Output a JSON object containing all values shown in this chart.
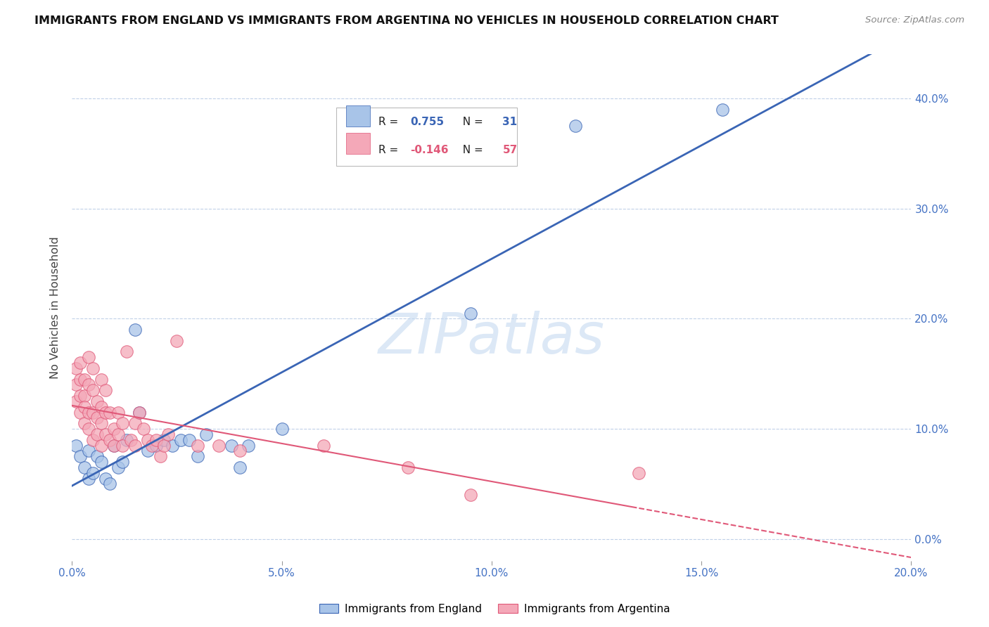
{
  "title": "IMMIGRANTS FROM ENGLAND VS IMMIGRANTS FROM ARGENTINA NO VEHICLES IN HOUSEHOLD CORRELATION CHART",
  "source": "Source: ZipAtlas.com",
  "ylabel": "No Vehicles in Household",
  "xlabel_england": "Immigrants from England",
  "xlabel_argentina": "Immigrants from Argentina",
  "r_england": 0.755,
  "n_england": 31,
  "r_argentina": -0.146,
  "n_argentina": 57,
  "xlim": [
    0.0,
    0.2
  ],
  "ylim": [
    -0.02,
    0.44
  ],
  "yticks": [
    0.0,
    0.1,
    0.2,
    0.3,
    0.4
  ],
  "xticks": [
    0.0,
    0.05,
    0.1,
    0.15,
    0.2
  ],
  "color_england": "#a8c4e8",
  "color_argentina": "#f4a8b8",
  "color_england_line": "#3a65b5",
  "color_argentina_line": "#e05878",
  "watermark": "ZIPatlas",
  "england_scatter": [
    [
      0.001,
      0.085
    ],
    [
      0.002,
      0.075
    ],
    [
      0.003,
      0.065
    ],
    [
      0.004,
      0.08
    ],
    [
      0.004,
      0.055
    ],
    [
      0.005,
      0.06
    ],
    [
      0.006,
      0.075
    ],
    [
      0.007,
      0.07
    ],
    [
      0.008,
      0.055
    ],
    [
      0.009,
      0.05
    ],
    [
      0.01,
      0.085
    ],
    [
      0.011,
      0.065
    ],
    [
      0.012,
      0.07
    ],
    [
      0.013,
      0.09
    ],
    [
      0.015,
      0.19
    ],
    [
      0.016,
      0.115
    ],
    [
      0.018,
      0.08
    ],
    [
      0.02,
      0.085
    ],
    [
      0.022,
      0.09
    ],
    [
      0.024,
      0.085
    ],
    [
      0.026,
      0.09
    ],
    [
      0.028,
      0.09
    ],
    [
      0.03,
      0.075
    ],
    [
      0.032,
      0.095
    ],
    [
      0.038,
      0.085
    ],
    [
      0.04,
      0.065
    ],
    [
      0.042,
      0.085
    ],
    [
      0.05,
      0.1
    ],
    [
      0.095,
      0.205
    ],
    [
      0.12,
      0.375
    ],
    [
      0.155,
      0.39
    ]
  ],
  "argentina_scatter": [
    [
      0.001,
      0.155
    ],
    [
      0.001,
      0.14
    ],
    [
      0.001,
      0.125
    ],
    [
      0.002,
      0.16
    ],
    [
      0.002,
      0.145
    ],
    [
      0.002,
      0.13
    ],
    [
      0.002,
      0.115
    ],
    [
      0.003,
      0.145
    ],
    [
      0.003,
      0.13
    ],
    [
      0.003,
      0.12
    ],
    [
      0.003,
      0.105
    ],
    [
      0.004,
      0.165
    ],
    [
      0.004,
      0.14
    ],
    [
      0.004,
      0.115
    ],
    [
      0.004,
      0.1
    ],
    [
      0.005,
      0.155
    ],
    [
      0.005,
      0.135
    ],
    [
      0.005,
      0.115
    ],
    [
      0.005,
      0.09
    ],
    [
      0.006,
      0.125
    ],
    [
      0.006,
      0.11
    ],
    [
      0.006,
      0.095
    ],
    [
      0.007,
      0.145
    ],
    [
      0.007,
      0.12
    ],
    [
      0.007,
      0.105
    ],
    [
      0.007,
      0.085
    ],
    [
      0.008,
      0.135
    ],
    [
      0.008,
      0.115
    ],
    [
      0.008,
      0.095
    ],
    [
      0.009,
      0.115
    ],
    [
      0.009,
      0.09
    ],
    [
      0.01,
      0.1
    ],
    [
      0.01,
      0.085
    ],
    [
      0.011,
      0.115
    ],
    [
      0.011,
      0.095
    ],
    [
      0.012,
      0.105
    ],
    [
      0.012,
      0.085
    ],
    [
      0.013,
      0.17
    ],
    [
      0.014,
      0.09
    ],
    [
      0.015,
      0.105
    ],
    [
      0.015,
      0.085
    ],
    [
      0.016,
      0.115
    ],
    [
      0.017,
      0.1
    ],
    [
      0.018,
      0.09
    ],
    [
      0.019,
      0.085
    ],
    [
      0.02,
      0.09
    ],
    [
      0.021,
      0.075
    ],
    [
      0.022,
      0.085
    ],
    [
      0.023,
      0.095
    ],
    [
      0.025,
      0.18
    ],
    [
      0.03,
      0.085
    ],
    [
      0.035,
      0.085
    ],
    [
      0.04,
      0.08
    ],
    [
      0.06,
      0.085
    ],
    [
      0.08,
      0.065
    ],
    [
      0.095,
      0.04
    ],
    [
      0.135,
      0.06
    ]
  ]
}
